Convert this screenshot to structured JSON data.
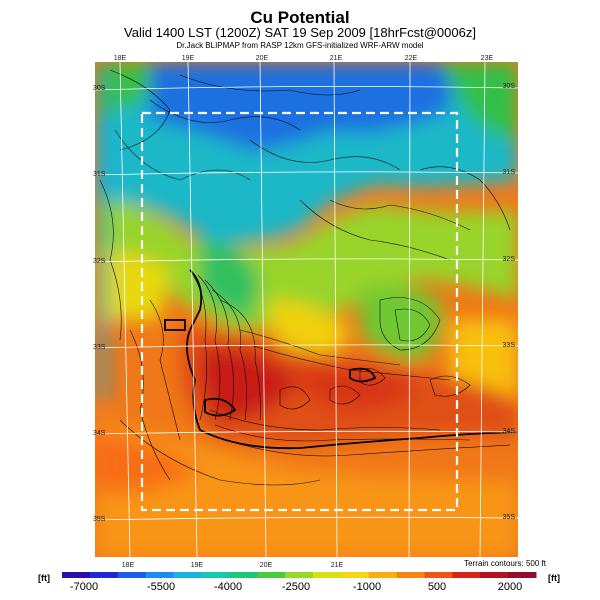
{
  "title": "Cu Potential",
  "subtitle": "Valid 1400 LST (1200Z) SAT 19 Sep 2009 [18hrFcst@0006z]",
  "credit": "Dr.Jack BLIPMAP from RASP 12km GFS-initialized WRF-ARW model",
  "longitudes_top": [
    "18E",
    "19E",
    "20E",
    "21E",
    "22E",
    "23E"
  ],
  "longitudes_bottom": [
    "18E",
    "19E",
    "20E",
    "21E"
  ],
  "latitudes_left": [
    "30S",
    "31S",
    "32S",
    "33S",
    "34S",
    "35S"
  ],
  "latitudes_right": [
    "30S",
    "31S",
    "32S",
    "33S",
    "34S",
    "35S"
  ],
  "terrain_note": "Terrain contours: 500 ft",
  "colorbar": {
    "unit_left": "[ft]",
    "unit_right": "[ft]",
    "ticks": [
      "-7000",
      "-5500",
      "-4000",
      "-2500",
      "-1000",
      "500",
      "2000"
    ],
    "colors": [
      "#2c0fa8",
      "#1f28d8",
      "#1b5be8",
      "#1c8cf0",
      "#17b3e0",
      "#14c8b4",
      "#1cc878",
      "#48cc3a",
      "#96d828",
      "#d8e010",
      "#f8d610",
      "#f8ae10",
      "#f88212",
      "#ee5414",
      "#d82414",
      "#b8101c",
      "#90102c"
    ]
  }
}
